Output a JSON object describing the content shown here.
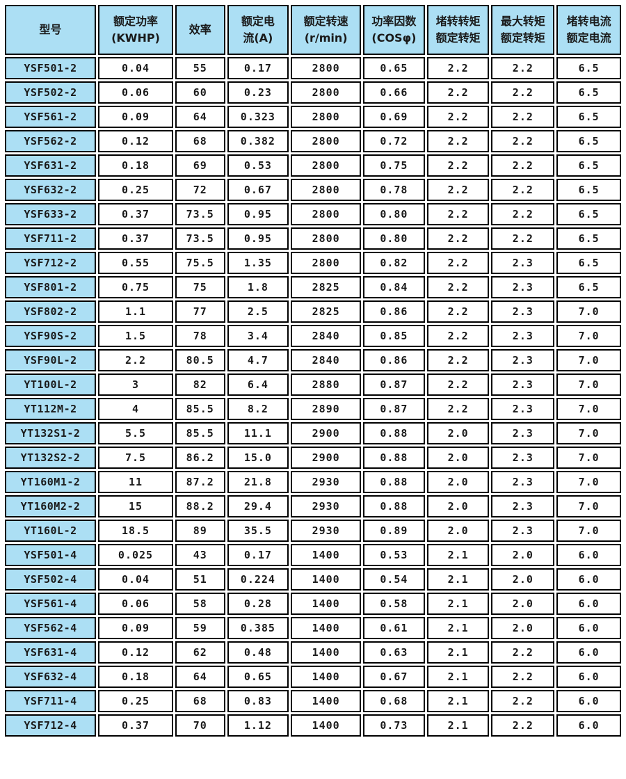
{
  "colors": {
    "header_bg": "#acdff4",
    "model_column_bg": "#acdff4",
    "data_cell_bg": "#ffffff",
    "border": "#000000",
    "text": "#1a1a1a"
  },
  "table": {
    "columns": [
      {
        "id": "model",
        "lines": [
          "型号"
        ]
      },
      {
        "id": "rated-power",
        "lines": [
          "额定功率",
          "(KWHP)"
        ]
      },
      {
        "id": "efficiency",
        "lines": [
          "效率"
        ]
      },
      {
        "id": "rated-current",
        "lines": [
          "额定电",
          "流(A)"
        ]
      },
      {
        "id": "rated-speed",
        "lines": [
          "额定转速",
          "(r/min)"
        ]
      },
      {
        "id": "power-factor",
        "lines": [
          "功率因数",
          "(COSφ)"
        ]
      },
      {
        "id": "locked-torque-ratio",
        "lines": [
          "堵转转矩",
          "额定转矩"
        ]
      },
      {
        "id": "max-torque-ratio",
        "lines": [
          "最大转矩",
          "额定转矩"
        ]
      },
      {
        "id": "locked-current-ratio",
        "lines": [
          "堵转电流",
          "额定电流"
        ]
      }
    ],
    "rows": [
      [
        "YSF501-2",
        "0.04",
        "55",
        "0.17",
        "2800",
        "0.65",
        "2.2",
        "2.2",
        "6.5"
      ],
      [
        "YSF502-2",
        "0.06",
        "60",
        "0.23",
        "2800",
        "0.66",
        "2.2",
        "2.2",
        "6.5"
      ],
      [
        "YSF561-2",
        "0.09",
        "64",
        "0.323",
        "2800",
        "0.69",
        "2.2",
        "2.2",
        "6.5"
      ],
      [
        "YSF562-2",
        "0.12",
        "68",
        "0.382",
        "2800",
        "0.72",
        "2.2",
        "2.2",
        "6.5"
      ],
      [
        "YSF631-2",
        "0.18",
        "69",
        "0.53",
        "2800",
        "0.75",
        "2.2",
        "2.2",
        "6.5"
      ],
      [
        "YSF632-2",
        "0.25",
        "72",
        "0.67",
        "2800",
        "0.78",
        "2.2",
        "2.2",
        "6.5"
      ],
      [
        "YSF633-2",
        "0.37",
        "73.5",
        "0.95",
        "2800",
        "0.80",
        "2.2",
        "2.2",
        "6.5"
      ],
      [
        "YSF711-2",
        "0.37",
        "73.5",
        "0.95",
        "2800",
        "0.80",
        "2.2",
        "2.2",
        "6.5"
      ],
      [
        "YSF712-2",
        "0.55",
        "75.5",
        "1.35",
        "2800",
        "0.82",
        "2.2",
        "2.3",
        "6.5"
      ],
      [
        "YSF801-2",
        "0.75",
        "75",
        "1.8",
        "2825",
        "0.84",
        "2.2",
        "2.3",
        "6.5"
      ],
      [
        "YSF802-2",
        "1.1",
        "77",
        "2.5",
        "2825",
        "0.86",
        "2.2",
        "2.3",
        "7.0"
      ],
      [
        "YSF90S-2",
        "1.5",
        "78",
        "3.4",
        "2840",
        "0.85",
        "2.2",
        "2.3",
        "7.0"
      ],
      [
        "YSF90L-2",
        "2.2",
        "80.5",
        "4.7",
        "2840",
        "0.86",
        "2.2",
        "2.3",
        "7.0"
      ],
      [
        "YT100L-2",
        "3",
        "82",
        "6.4",
        "2880",
        "0.87",
        "2.2",
        "2.3",
        "7.0"
      ],
      [
        "YT112M-2",
        "4",
        "85.5",
        "8.2",
        "2890",
        "0.87",
        "2.2",
        "2.3",
        "7.0"
      ],
      [
        "YT132S1-2",
        "5.5",
        "85.5",
        "11.1",
        "2900",
        "0.88",
        "2.0",
        "2.3",
        "7.0"
      ],
      [
        "YT132S2-2",
        "7.5",
        "86.2",
        "15.0",
        "2900",
        "0.88",
        "2.0",
        "2.3",
        "7.0"
      ],
      [
        "YT160M1-2",
        "11",
        "87.2",
        "21.8",
        "2930",
        "0.88",
        "2.0",
        "2.3",
        "7.0"
      ],
      [
        "YT160M2-2",
        "15",
        "88.2",
        "29.4",
        "2930",
        "0.88",
        "2.0",
        "2.3",
        "7.0"
      ],
      [
        "YT160L-2",
        "18.5",
        "89",
        "35.5",
        "2930",
        "0.89",
        "2.0",
        "2.3",
        "7.0"
      ],
      [
        "YSF501-4",
        "0.025",
        "43",
        "0.17",
        "1400",
        "0.53",
        "2.1",
        "2.0",
        "6.0"
      ],
      [
        "YSF502-4",
        "0.04",
        "51",
        "0.224",
        "1400",
        "0.54",
        "2.1",
        "2.0",
        "6.0"
      ],
      [
        "YSF561-4",
        "0.06",
        "58",
        "0.28",
        "1400",
        "0.58",
        "2.1",
        "2.0",
        "6.0"
      ],
      [
        "YSF562-4",
        "0.09",
        "59",
        "0.385",
        "1400",
        "0.61",
        "2.1",
        "2.0",
        "6.0"
      ],
      [
        "YSF631-4",
        "0.12",
        "62",
        "0.48",
        "1400",
        "0.63",
        "2.1",
        "2.2",
        "6.0"
      ],
      [
        "YSF632-4",
        "0.18",
        "64",
        "0.65",
        "1400",
        "0.67",
        "2.1",
        "2.2",
        "6.0"
      ],
      [
        "YSF711-4",
        "0.25",
        "68",
        "0.83",
        "1400",
        "0.68",
        "2.1",
        "2.2",
        "6.0"
      ],
      [
        "YSF712-4",
        "0.37",
        "70",
        "1.12",
        "1400",
        "0.73",
        "2.1",
        "2.2",
        "6.0"
      ]
    ]
  }
}
